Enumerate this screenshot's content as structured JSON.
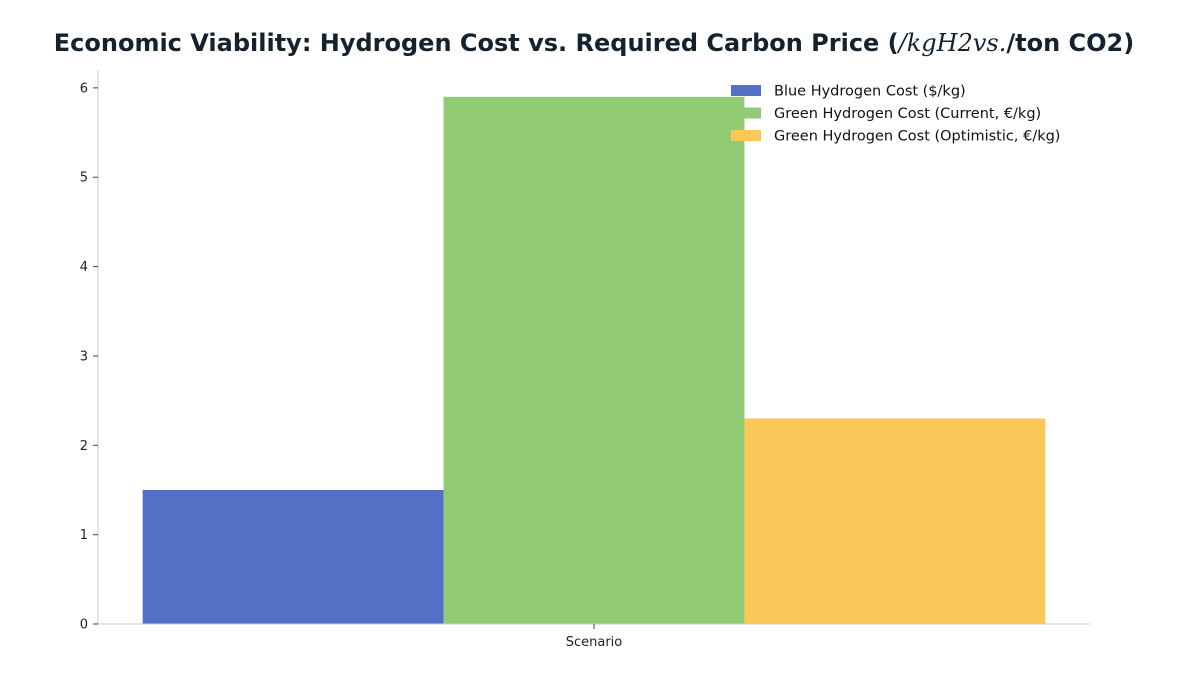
{
  "chart_data": {
    "type": "bar",
    "title_parts": [
      {
        "text": "Economic Viability: Hydrogen Cost vs. Required Carbon Price (",
        "math": false
      },
      {
        "text": "/kgH2vs.",
        "math": true
      },
      {
        "text": "/ton CO2)",
        "math": false
      }
    ],
    "categories": [
      "Scenario"
    ],
    "series": [
      {
        "name": "Blue Hydrogen Cost ($/kg)",
        "values": [
          1.5
        ],
        "color": "#5470c6"
      },
      {
        "name": "Green Hydrogen Cost (Current, €/kg)",
        "values": [
          5.9
        ],
        "color": "#91cc75"
      },
      {
        "name": "Green Hydrogen Cost (Optimistic, €/kg)",
        "values": [
          2.3
        ],
        "color": "#fac858"
      }
    ],
    "xlabel": "",
    "ylabel": "",
    "ylim": [
      0,
      6.2
    ],
    "yticks": [
      0,
      1,
      2,
      3,
      4,
      5,
      6
    ],
    "grid": false,
    "legend_position": "top-right"
  }
}
